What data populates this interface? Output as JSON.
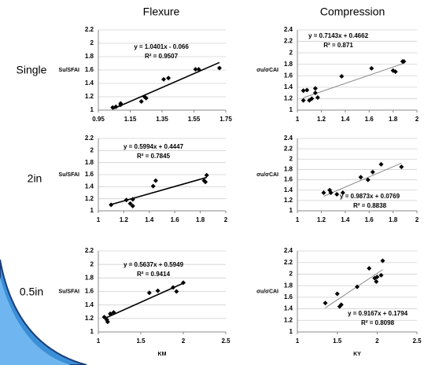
{
  "column_titles": [
    "Flexure",
    "Compression"
  ],
  "row_labels": [
    "Single",
    "2in",
    "0.5in"
  ],
  "chart_data": [
    {
      "type": "scatter",
      "y_label": "Su/SFAI",
      "x": [
        1.04,
        1.06,
        1.09,
        1.09,
        1.22,
        1.24,
        1.25,
        1.36,
        1.39,
        1.56,
        1.58,
        1.71
      ],
      "values": [
        1.04,
        1.05,
        1.1,
        1.08,
        1.13,
        1.2,
        1.18,
        1.46,
        1.48,
        1.61,
        1.61,
        1.63
      ],
      "color": "#000000",
      "trendline": {
        "slope": 1.0401,
        "intercept": -0.066,
        "color": "#000000"
      },
      "annotations": [
        "y = 1.0401x - 0.066",
        "R² = 0.9507"
      ],
      "xlim": [
        0.95,
        1.75
      ],
      "ylim": [
        1,
        2.2
      ],
      "xticks": [
        0.95,
        1.15,
        1.35,
        1.55,
        1.75
      ],
      "yticks": [
        1,
        1.2,
        1.4,
        1.6,
        1.8,
        2,
        2.2
      ],
      "grid": true
    },
    {
      "type": "scatter",
      "y_label": "σu/σCAI",
      "x": [
        1.05,
        1.05,
        1.08,
        1.1,
        1.12,
        1.15,
        1.15,
        1.17,
        1.37,
        1.62,
        1.8,
        1.82,
        1.88,
        1.89
      ],
      "values": [
        1.17,
        1.34,
        1.35,
        1.17,
        1.2,
        1.3,
        1.38,
        1.22,
        1.59,
        1.73,
        1.69,
        1.67,
        1.85,
        1.85
      ],
      "color": "#000000",
      "trendline": {
        "slope": 0.7143,
        "intercept": 0.4662,
        "color": "#888888"
      },
      "annotations": [
        "y = 0.7143x + 0.4662",
        "R² = 0.871"
      ],
      "xlim": [
        1,
        2
      ],
      "ylim": [
        1,
        2.4
      ],
      "xticks": [
        1,
        1.2,
        1.4,
        1.6,
        1.8,
        2
      ],
      "yticks": [
        1,
        1.2,
        1.4,
        1.6,
        1.8,
        2,
        2.2,
        2.4
      ],
      "grid": true
    },
    {
      "type": "scatter",
      "y_label": "Su/SFAI",
      "x": [
        1.1,
        1.22,
        1.25,
        1.27,
        1.27,
        1.43,
        1.45,
        1.83,
        1.84,
        1.85
      ],
      "values": [
        1.1,
        1.18,
        1.12,
        1.08,
        1.19,
        1.41,
        1.5,
        1.5,
        1.48,
        1.59
      ],
      "color": "#000000",
      "trendline": {
        "slope": 0.5994,
        "intercept": 0.4447,
        "color": "#000000"
      },
      "annotations": [
        "y = 0.5994x + 0.4447",
        "R² = 0.7845"
      ],
      "xlim": [
        1,
        2
      ],
      "ylim": [
        1,
        2.2
      ],
      "xticks": [
        1,
        1.2,
        1.4,
        1.6,
        1.8,
        2
      ],
      "yticks": [
        1,
        1.2,
        1.4,
        1.6,
        1.8,
        2,
        2.2
      ],
      "grid": true
    },
    {
      "type": "scatter",
      "y_label": "σu/σCAI",
      "x": [
        1.22,
        1.27,
        1.28,
        1.33,
        1.38,
        1.53,
        1.59,
        1.63,
        1.7,
        1.87
      ],
      "values": [
        1.35,
        1.4,
        1.35,
        1.32,
        1.35,
        1.65,
        1.6,
        1.75,
        1.9,
        1.85
      ],
      "color": "#000000",
      "trendline": {
        "slope": 0.9873,
        "intercept": 0.0769,
        "color": "#888888"
      },
      "annotations": [
        "y = 0.9873x + 0.0769",
        "R² = 0.8838"
      ],
      "xlim": [
        1,
        2
      ],
      "ylim": [
        1,
        2.4
      ],
      "xticks": [
        1,
        1.2,
        1.4,
        1.6,
        1.8,
        2
      ],
      "yticks": [
        1,
        1.2,
        1.4,
        1.6,
        1.8,
        2,
        2.2,
        2.4
      ],
      "grid": true
    },
    {
      "type": "scatter",
      "y_label": "Su/SFAI",
      "x_label": "KM",
      "x": [
        1.07,
        1.1,
        1.11,
        1.14,
        1.18,
        1.6,
        1.7,
        1.88,
        1.92,
        2
      ],
      "values": [
        1.22,
        1.18,
        1.15,
        1.27,
        1.29,
        1.58,
        1.61,
        1.66,
        1.6,
        1.73
      ],
      "color": "#000000",
      "trendline": {
        "slope": 0.5637,
        "intercept": 0.5949,
        "color": "#000000"
      },
      "annotations": [
        "y = 0.5637x + 0.5949",
        "R² = 0.9414"
      ],
      "xlim": [
        1,
        2.5
      ],
      "ylim": [
        1,
        2.2
      ],
      "xticks": [
        1,
        1.5,
        2,
        2.5
      ],
      "yticks": [
        1,
        1.2,
        1.4,
        1.6,
        1.8,
        2,
        2.2
      ],
      "grid": true
    },
    {
      "type": "scatter",
      "y_label": "σu/σCAI",
      "x_label": "KY",
      "x": [
        1.35,
        1.5,
        1.53,
        1.55,
        1.75,
        1.9,
        1.97,
        1.99,
        2,
        2.05,
        2.07
      ],
      "values": [
        1.5,
        1.66,
        1.44,
        1.47,
        1.78,
        2.1,
        1.93,
        1.87,
        1.95,
        1.98,
        2.23
      ],
      "color": "#000000",
      "trendline": {
        "slope": 0.9167,
        "intercept": 0.1794,
        "color": "#888888"
      },
      "annotations": [
        "y = 0.9167x + 0.1794",
        "R² = 0.8098"
      ],
      "xlim": [
        1,
        2.5
      ],
      "ylim": [
        1,
        2.4
      ],
      "xticks": [
        1,
        1.5,
        2,
        2.5
      ],
      "yticks": [
        1,
        1.2,
        1.4,
        1.6,
        1.8,
        2,
        2.2,
        2.4
      ],
      "grid": true
    }
  ]
}
